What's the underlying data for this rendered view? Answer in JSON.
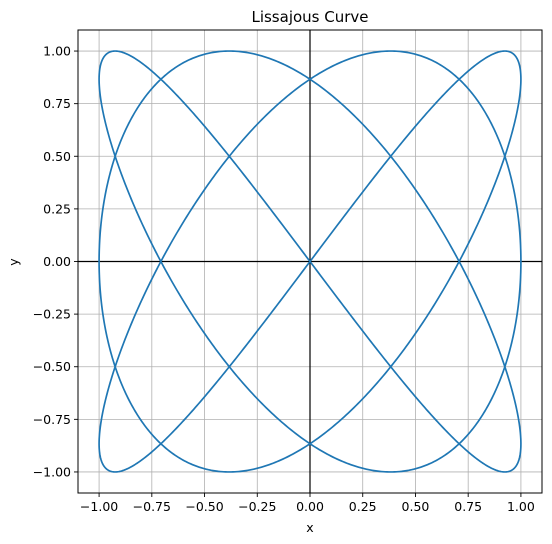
{
  "chart_data": {
    "type": "line",
    "title": "Lissajous Curve",
    "xlabel": "x",
    "ylabel": "y",
    "xlim": [
      -1.1,
      1.1
    ],
    "ylim": [
      -1.1,
      1.1
    ],
    "grid": true,
    "x_ticks": [
      -1.0,
      -0.75,
      -0.5,
      -0.25,
      0.0,
      0.25,
      0.5,
      0.75,
      1.0
    ],
    "y_ticks": [
      -1.0,
      -0.75,
      -0.5,
      -0.25,
      0.0,
      0.25,
      0.5,
      0.75,
      1.0
    ],
    "x_tick_labels": [
      "−1.00",
      "−0.75",
      "−0.50",
      "−0.25",
      "0.00",
      "0.25",
      "0.50",
      "0.75",
      "1.00"
    ],
    "y_tick_labels": [
      "−1.00",
      "−0.75",
      "−0.50",
      "−0.25",
      "0.00",
      "0.25",
      "0.50",
      "0.75",
      "1.00"
    ],
    "reference_lines": {
      "x": 0,
      "y": 0,
      "color": "#000000"
    },
    "series": [
      {
        "equation": "x = sin(3t + pi/2), y = sin(4t)",
        "color": "#1f77b4"
      }
    ]
  }
}
